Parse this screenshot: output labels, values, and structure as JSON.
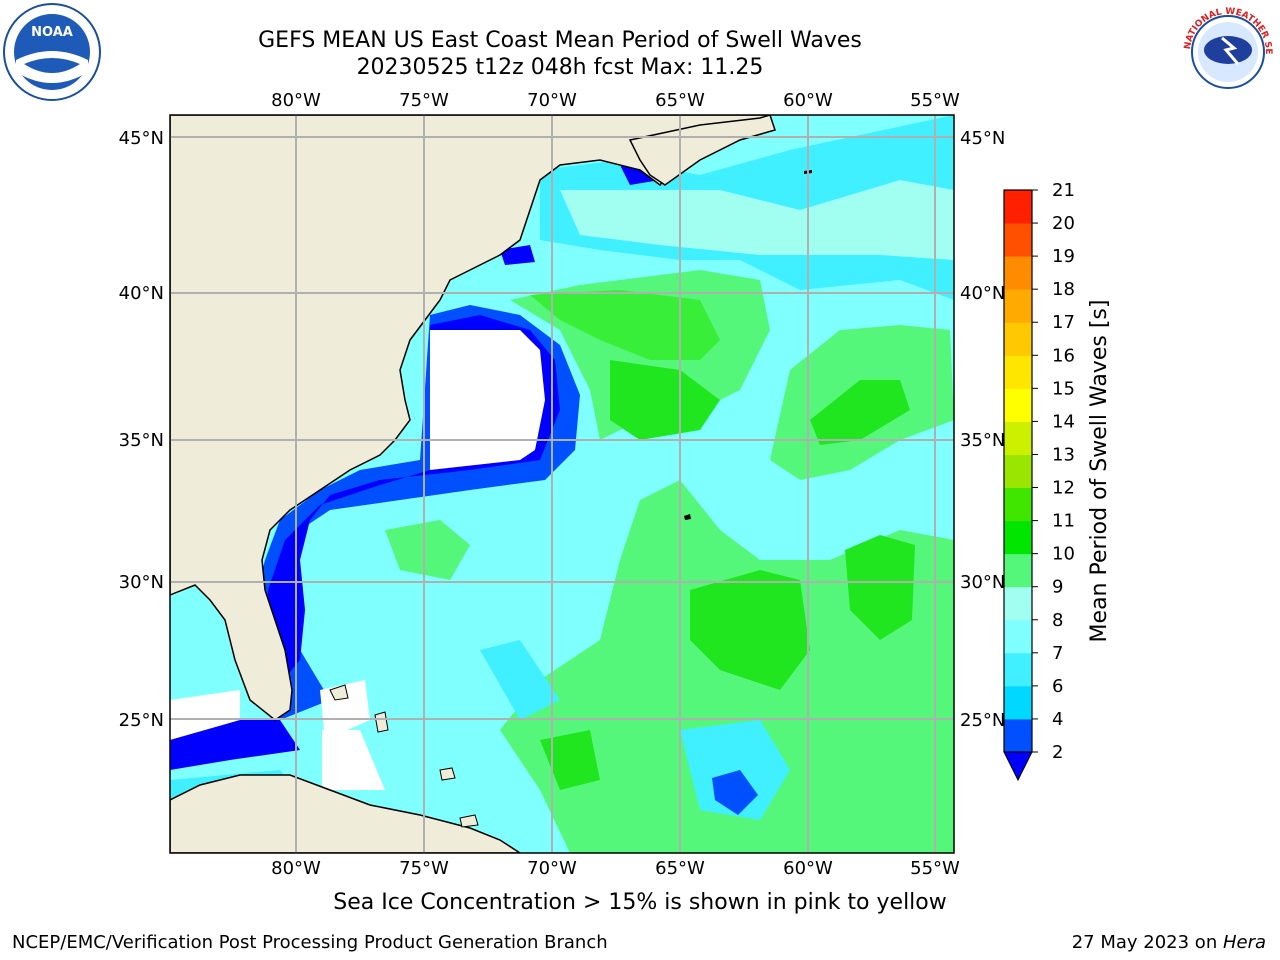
{
  "title_line1": "GEFS MEAN US East Coast Mean Period of Swell Waves",
  "title_line2": "20230525 t12z 048h fcst   Max: 11.25",
  "logos": {
    "left": "NOAA",
    "right": "NATIONAL WEATHER SERVICE"
  },
  "map": {
    "lon_labels": [
      "80°W",
      "75°W",
      "70°W",
      "65°W",
      "60°W",
      "55°W"
    ],
    "lat_labels": [
      "45°N",
      "40°N",
      "35°N",
      "30°N",
      "25°N"
    ],
    "colors": {
      "land": "#efecd9",
      "grid": "#b0b0b0",
      "coast": "#000000"
    }
  },
  "colorbar": {
    "title": "Mean Period of Swell Waves [s]",
    "levels": [
      "2",
      "4",
      "6",
      "7",
      "8",
      "9",
      "10",
      "11",
      "12",
      "13",
      "14",
      "15",
      "16",
      "17",
      "18",
      "19",
      "20",
      "21"
    ],
    "colors": [
      "#0050ff",
      "#00d8ff",
      "#40f0ff",
      "#80ffff",
      "#a0fff0",
      "#55f77a",
      "#00e600",
      "#40e600",
      "#9ae600",
      "#cdf000",
      "#ffff00",
      "#ffe600",
      "#ffc800",
      "#ffaa00",
      "#ff8c00",
      "#ff5000",
      "#ff2000",
      "#ff0000"
    ],
    "extend_color": "#0000ff"
  },
  "caption": "Sea Ice Concentration > 15% is shown in pink to yellow",
  "footer": {
    "left": "NCEP/EMC/Verification Post Processing Product Generation Branch",
    "date": "27 May 2023 on ",
    "host": "Hera"
  }
}
